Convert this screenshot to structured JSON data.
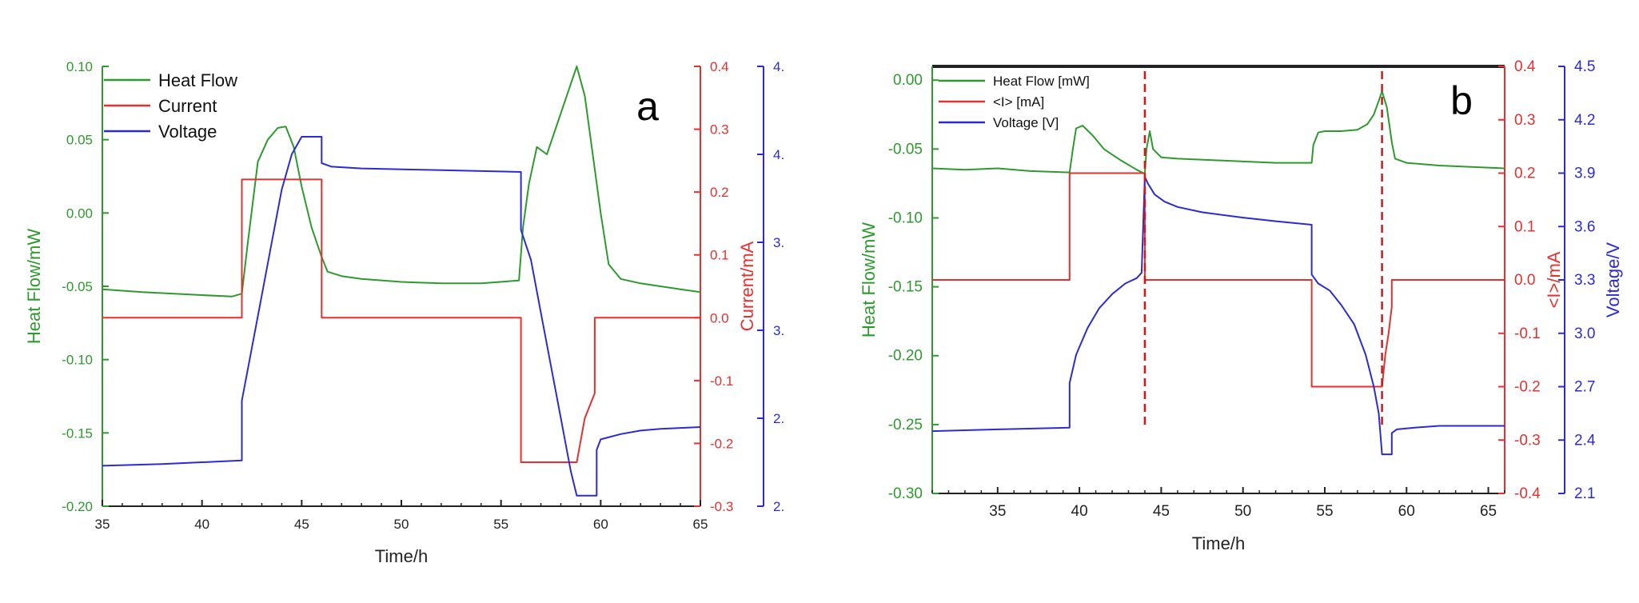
{
  "colors": {
    "heat": "#2e9a2e",
    "current": "#e53030",
    "voltage": "#2b2bd6",
    "axis": "#222222"
  },
  "chart_data": [
    {
      "type": "line",
      "panel_label": "a",
      "xlabel": "Time/h",
      "ylabel_left": "Heat Flow/mW",
      "ylabel_right": "Current/mA",
      "xlim": [
        35,
        65
      ],
      "ylim_left": [
        -0.2,
        0.1
      ],
      "ylim_right": [
        -0.3,
        0.4
      ],
      "ylim_voltage": [
        2.0,
        4.5
      ],
      "x_ticks": [
        "35",
        "40",
        "45",
        "50",
        "55",
        "60",
        "65"
      ],
      "y_ticks_left": [
        "0.10",
        "0.05",
        "0.00",
        "-0.05",
        "-0.10",
        "-0.15",
        "-0.20"
      ],
      "y_ticks_right": [
        "0.4",
        "0.3",
        "0.2",
        "0.1",
        "0.0",
        "-0.1",
        "-0.2",
        "-0.3"
      ],
      "y_ticks_voltage": [
        "4.",
        "4.",
        "3.",
        "3.",
        "2.",
        "2."
      ],
      "legend_position": "top-left",
      "series": [
        {
          "name": "Heat Flow",
          "axis": "left",
          "x": [
            35,
            37,
            40,
            41.5,
            42,
            42.3,
            42.8,
            43.3,
            43.8,
            44.2,
            44.6,
            45,
            45.5,
            46,
            46.3,
            47,
            48,
            50,
            52,
            54,
            55.9,
            56.1,
            56.4,
            56.8,
            57.3,
            57.8,
            58.3,
            58.8,
            59.2,
            59.6,
            60,
            60.4,
            61,
            62,
            63,
            64,
            65
          ],
          "y": [
            -0.052,
            -0.054,
            -0.056,
            -0.057,
            -0.055,
            -0.02,
            0.035,
            0.05,
            0.058,
            0.059,
            0.045,
            0.018,
            -0.01,
            -0.03,
            -0.04,
            -0.043,
            -0.045,
            -0.047,
            -0.048,
            -0.048,
            -0.046,
            -0.01,
            0.02,
            0.045,
            0.04,
            0.06,
            0.08,
            0.1,
            0.08,
            0.04,
            0.0,
            -0.035,
            -0.045,
            -0.048,
            -0.05,
            -0.052,
            -0.054
          ]
        },
        {
          "name": "Current",
          "axis": "right",
          "x": [
            35,
            42,
            42,
            46,
            46,
            56,
            56,
            58.8,
            59.2,
            59.7,
            59.7,
            65
          ],
          "y": [
            0.0,
            0.0,
            0.22,
            0.22,
            0.0,
            0.0,
            -0.23,
            -0.23,
            -0.16,
            -0.12,
            0.0,
            0.0
          ]
        },
        {
          "name": "Voltage",
          "axis": "voltage",
          "x": [
            35,
            38,
            42,
            42,
            42.5,
            43,
            43.5,
            44,
            44.5,
            45,
            46,
            46,
            46.5,
            48,
            52,
            56,
            56,
            56.5,
            57,
            57.5,
            58,
            58.5,
            58.8,
            59.8,
            59.8,
            60,
            61,
            62,
            63,
            65
          ],
          "y": [
            2.23,
            2.24,
            2.26,
            2.6,
            2.9,
            3.2,
            3.5,
            3.8,
            4.0,
            4.1,
            4.1,
            3.95,
            3.93,
            3.92,
            3.91,
            3.9,
            3.57,
            3.4,
            3.1,
            2.8,
            2.5,
            2.2,
            2.06,
            2.06,
            2.32,
            2.38,
            2.41,
            2.43,
            2.44,
            2.45
          ]
        }
      ]
    },
    {
      "type": "line",
      "panel_label": "b",
      "xlabel": "Time/h",
      "ylabel_left": "Heat Flow/mW",
      "ylabel_right": "<I>/mA",
      "ylabel_voltage": "Voltage/V",
      "xlim": [
        31,
        66
      ],
      "ylim_left": [
        -0.3,
        0.01
      ],
      "ylim_right": [
        -0.4,
        0.4
      ],
      "ylim_voltage": [
        2.1,
        4.5
      ],
      "x_ticks": [
        "35",
        "40",
        "45",
        "50",
        "55",
        "60",
        "65"
      ],
      "y_ticks_left": [
        "0.00",
        "-0.05",
        "-0.10",
        "-0.15",
        "-0.20",
        "-0.25",
        "-0.30"
      ],
      "y_ticks_right": [
        "0.4",
        "0.3",
        "0.2",
        "0.1",
        "0.0",
        "-0.1",
        "-0.2",
        "-0.3",
        "-0.4"
      ],
      "y_ticks_voltage": [
        "4.5",
        "4.2",
        "3.9",
        "3.6",
        "3.3",
        "3.0",
        "2.7",
        "2.4",
        "2.1"
      ],
      "legend_position": "top-left",
      "markers_x": [
        44,
        58.5
      ],
      "series": [
        {
          "name": "Heat Flow [mW]",
          "axis": "left",
          "x": [
            31,
            33,
            35,
            37,
            39.4,
            39.6,
            39.8,
            40.2,
            40.8,
            41.5,
            42.5,
            43.5,
            44,
            44.1,
            44.3,
            44.5,
            45,
            46,
            48,
            50,
            52,
            54.2,
            54.3,
            54.6,
            55,
            56,
            57,
            57.6,
            58,
            58.3,
            58.5,
            58.8,
            59.1,
            59.3,
            60,
            62,
            64,
            66
          ],
          "y": [
            -0.064,
            -0.065,
            -0.064,
            -0.066,
            -0.067,
            -0.05,
            -0.035,
            -0.033,
            -0.04,
            -0.05,
            -0.058,
            -0.065,
            -0.068,
            -0.05,
            -0.037,
            -0.05,
            -0.056,
            -0.057,
            -0.058,
            -0.059,
            -0.06,
            -0.06,
            -0.047,
            -0.038,
            -0.037,
            -0.037,
            -0.036,
            -0.032,
            -0.025,
            -0.015,
            -0.008,
            -0.02,
            -0.045,
            -0.057,
            -0.06,
            -0.062,
            -0.063,
            -0.064
          ]
        },
        {
          "name": "<I> [mA]",
          "axis": "right",
          "x": [
            31,
            39.4,
            39.4,
            44,
            44,
            54.2,
            54.2,
            58.5,
            58.7,
            58.9,
            59.1,
            59.1,
            66
          ],
          "y": [
            0.0,
            0.0,
            0.2,
            0.2,
            0.0,
            0.0,
            -0.2,
            -0.2,
            -0.14,
            -0.1,
            -0.05,
            0.0,
            0.0
          ]
        },
        {
          "name": "Voltage [V]",
          "axis": "voltage",
          "x": [
            31,
            35,
            39.4,
            39.4,
            39.8,
            40.5,
            41.2,
            42,
            42.8,
            43.5,
            43.8,
            44,
            44.2,
            44.6,
            45.2,
            46,
            47.5,
            50,
            52,
            54.2,
            54.2,
            54.6,
            55.3,
            56,
            56.8,
            57.5,
            58,
            58.3,
            58.5,
            59.1,
            59.1,
            59.4,
            60.5,
            62,
            64,
            66
          ],
          "y": [
            2.45,
            2.46,
            2.47,
            2.72,
            2.88,
            3.03,
            3.14,
            3.22,
            3.28,
            3.31,
            3.34,
            3.88,
            3.84,
            3.78,
            3.74,
            3.71,
            3.68,
            3.65,
            3.63,
            3.61,
            3.33,
            3.28,
            3.24,
            3.16,
            3.05,
            2.88,
            2.7,
            2.55,
            2.32,
            2.32,
            2.44,
            2.46,
            2.47,
            2.48,
            2.48,
            2.48
          ]
        }
      ]
    }
  ]
}
